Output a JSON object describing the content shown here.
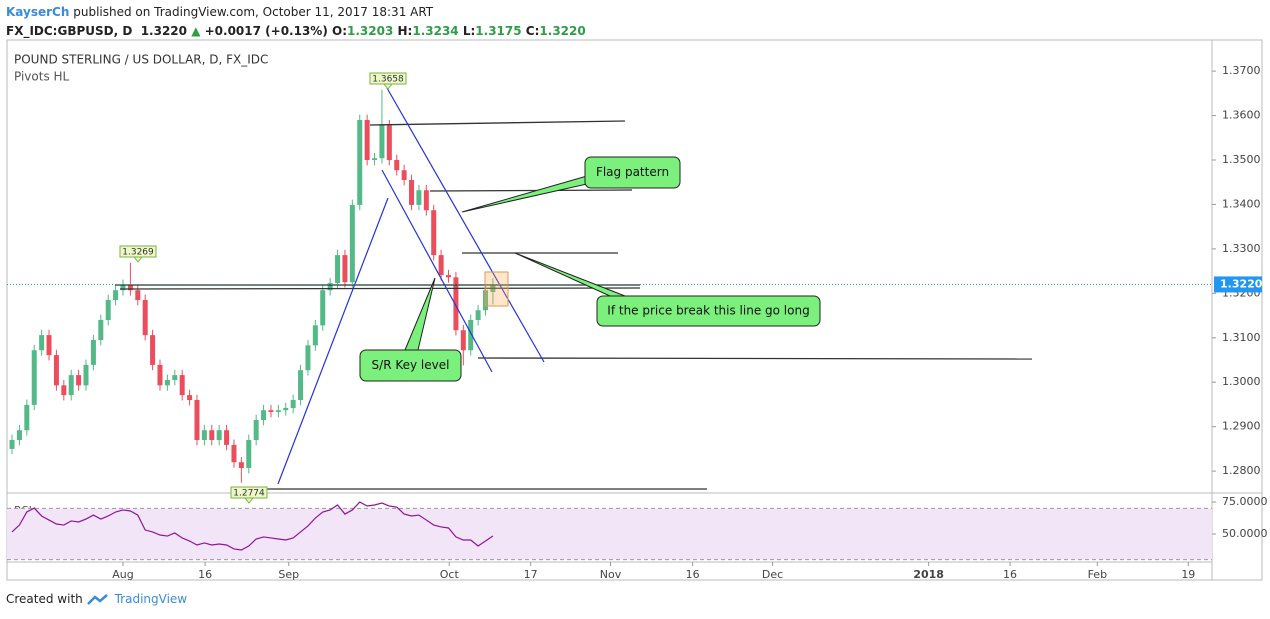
{
  "header": {
    "author": "KayserCh",
    "published": "published on TradingView.com, October 11, 2017 18:31 ART",
    "symbol": "FX_IDC:GBPUSD, D",
    "last": "1.3220",
    "arrow": "▲",
    "change": "+0.0017 (+0.13%)",
    "ohlc": [
      {
        "label": "O:",
        "value": "1.3203"
      },
      {
        "label": "H:",
        "value": "1.3234"
      },
      {
        "label": "L:",
        "value": "1.3175"
      },
      {
        "label": "C:",
        "value": "1.3220"
      }
    ]
  },
  "chart_data": {
    "type": "candlestick",
    "title": "POUND STERLING / US DOLLAR, D, FX_IDC",
    "subtitle": "Pivots HL",
    "up_color": "#53b987",
    "down_color": "#eb4d5c",
    "open": [
      1.285,
      1.287,
      1.2892,
      1.2949,
      1.3072,
      1.3106,
      1.3061,
      1.2993,
      1.2971,
      1.3016,
      1.2993,
      1.3039,
      1.3095,
      1.314,
      1.3185,
      1.3207,
      1.3219,
      1.3207,
      1.3185,
      1.3106,
      1.3039,
      1.2993,
      1.3005,
      1.3016,
      1.2971,
      1.296,
      1.287,
      1.2892,
      1.287,
      1.2892,
      1.2859,
      1.282,
      1.2807,
      1.287,
      1.2915,
      1.2937,
      1.2933,
      1.2937,
      1.2942,
      1.296,
      1.3027,
      1.3083,
      1.3128,
      1.3207,
      1.3223,
      1.3286,
      1.3225,
      1.3399,
      1.359,
      1.35,
      1.3504,
      1.3578,
      1.35,
      1.3477,
      1.3455,
      1.3399,
      1.3432,
      1.3387,
      1.3286,
      1.3241,
      1.3236,
      1.3117,
      1.3072,
      1.314,
      1.3162,
      1.3203
    ],
    "high": [
      1.2882,
      1.2904,
      1.2961,
      1.3084,
      1.3118,
      1.3118,
      1.3073,
      1.3005,
      1.3028,
      1.3028,
      1.3051,
      1.3107,
      1.3152,
      1.3197,
      1.3219,
      1.3231,
      1.3269,
      1.3219,
      1.3197,
      1.3118,
      1.3051,
      1.3017,
      1.3028,
      1.3028,
      1.2983,
      1.2972,
      1.2904,
      1.2904,
      1.2904,
      1.2904,
      1.2871,
      1.2832,
      1.2882,
      1.2927,
      1.2949,
      1.2949,
      1.2949,
      1.2954,
      1.2972,
      1.3039,
      1.3095,
      1.314,
      1.3219,
      1.3235,
      1.3298,
      1.3298,
      1.3411,
      1.3602,
      1.3602,
      1.3516,
      1.3658,
      1.359,
      1.3512,
      1.3489,
      1.3467,
      1.3444,
      1.3444,
      1.3399,
      1.3298,
      1.3253,
      1.3248,
      1.3129,
      1.3152,
      1.3174,
      1.3219,
      1.3234
    ],
    "low": [
      1.2838,
      1.2858,
      1.288,
      1.2937,
      1.306,
      1.3049,
      1.2981,
      1.2959,
      1.2959,
      1.2981,
      1.2981,
      1.3027,
      1.3083,
      1.3128,
      1.3173,
      1.3195,
      1.3195,
      1.3173,
      1.3094,
      1.3027,
      1.2981,
      1.2981,
      1.2993,
      1.2959,
      1.2948,
      1.2858,
      1.2858,
      1.2858,
      1.2858,
      1.2847,
      1.2808,
      1.2774,
      1.2795,
      1.2858,
      1.2903,
      1.2921,
      1.2921,
      1.2925,
      1.293,
      1.2948,
      1.3015,
      1.3071,
      1.3116,
      1.3195,
      1.3211,
      1.3213,
      1.3213,
      1.3387,
      1.3488,
      1.3488,
      1.3492,
      1.3488,
      1.3465,
      1.3443,
      1.3387,
      1.3387,
      1.3375,
      1.3274,
      1.3229,
      1.3224,
      1.3105,
      1.3038,
      1.306,
      1.3128,
      1.315,
      1.3175
    ],
    "close": [
      1.287,
      1.2892,
      1.2949,
      1.3072,
      1.3106,
      1.3061,
      1.2993,
      1.2971,
      1.3016,
      1.2993,
      1.3039,
      1.3095,
      1.314,
      1.3185,
      1.3207,
      1.3219,
      1.3207,
      1.3185,
      1.3106,
      1.3039,
      1.2993,
      1.3005,
      1.3016,
      1.2971,
      1.296,
      1.287,
      1.2892,
      1.287,
      1.2892,
      1.2859,
      1.282,
      1.2807,
      1.287,
      1.2915,
      1.2937,
      1.2933,
      1.2937,
      1.2942,
      1.296,
      1.3027,
      1.3083,
      1.3128,
      1.3207,
      1.3223,
      1.3286,
      1.3225,
      1.3399,
      1.359,
      1.35,
      1.3504,
      1.3578,
      1.35,
      1.3477,
      1.3455,
      1.3399,
      1.3432,
      1.3387,
      1.3286,
      1.3241,
      1.3236,
      1.3117,
      1.3072,
      1.314,
      1.3162,
      1.3207,
      1.322
    ],
    "xlim": [
      -0.68,
      162.2
    ],
    "xticks": [
      {
        "value": 15,
        "label": "Aug"
      },
      {
        "value": 26.1,
        "label": "16"
      },
      {
        "value": 37.4,
        "label": "Sep"
      },
      {
        "value": 59.1,
        "label": "Oct"
      },
      {
        "value": 70.1,
        "label": "17"
      },
      {
        "value": 80.9,
        "label": "Nov"
      },
      {
        "value": 92.0,
        "label": "16"
      },
      {
        "value": 102.8,
        "label": "Dec"
      },
      {
        "value": 123.9,
        "label": "2018"
      },
      {
        "value": 134.9,
        "label": "16"
      },
      {
        "value": 146.7,
        "label": "Feb"
      },
      {
        "value": 159.0,
        "label": "19"
      }
    ],
    "ylim": [
      1.2753,
      1.377
    ],
    "yticks": [
      {
        "value": 1.28,
        "label": "1.2800"
      },
      {
        "value": 1.29,
        "label": "1.2900"
      },
      {
        "value": 1.3,
        "label": "1.3000"
      },
      {
        "value": 1.31,
        "label": "1.3100"
      },
      {
        "value": 1.32,
        "label": "1.3200"
      },
      {
        "value": 1.33,
        "label": "1.3300"
      },
      {
        "value": 1.34,
        "label": "1.3400"
      },
      {
        "value": 1.35,
        "label": "1.3500"
      },
      {
        "value": 1.36,
        "label": "1.3600"
      },
      {
        "value": 1.37,
        "label": "1.3700"
      }
    ],
    "last_price": {
      "value": 1.322,
      "label": "1.3220",
      "color": "#2196f3"
    },
    "pivot_labels": [
      "1.3658",
      "1.3269",
      "1.2774"
    ],
    "callouts": [
      "Flag pattern",
      "If the price break this line go long",
      "S/R Key level"
    ],
    "rsi": {
      "title": "RSI",
      "color": "#8e1599",
      "band": [
        30,
        70
      ],
      "values": [
        51.6,
        57.0,
        67.2,
        70.3,
        64.1,
        60.9,
        57.8,
        57.0,
        60.2,
        59.4,
        61.7,
        64.8,
        61.7,
        64.1,
        67.2,
        68.8,
        68.0,
        64.8,
        53.1,
        51.6,
        49.2,
        48.4,
        50.8,
        46.9,
        44.5,
        41.4,
        43.0,
        41.4,
        42.2,
        41.4,
        38.3,
        37.5,
        40.6,
        46.1,
        47.7,
        46.9,
        46.1,
        45.3,
        46.9,
        51.6,
        56.3,
        62.5,
        67.2,
        68.8,
        72.7,
        65.6,
        68.8,
        75.0,
        71.9,
        72.7,
        74.2,
        71.9,
        71.1,
        65.6,
        64.1,
        64.8,
        60.9,
        57.0,
        55.5,
        54.7,
        47.7,
        45.3,
        45.3,
        40.6,
        44.5,
        48.4
      ],
      "ylim": [
        28.1,
        80.5
      ],
      "yticks": [
        {
          "value": 50,
          "label": "50.0000"
        },
        {
          "value": 75,
          "label": "75.0000"
        }
      ]
    }
  },
  "footer": {
    "created": "Created with",
    "brand": "TradingView"
  }
}
